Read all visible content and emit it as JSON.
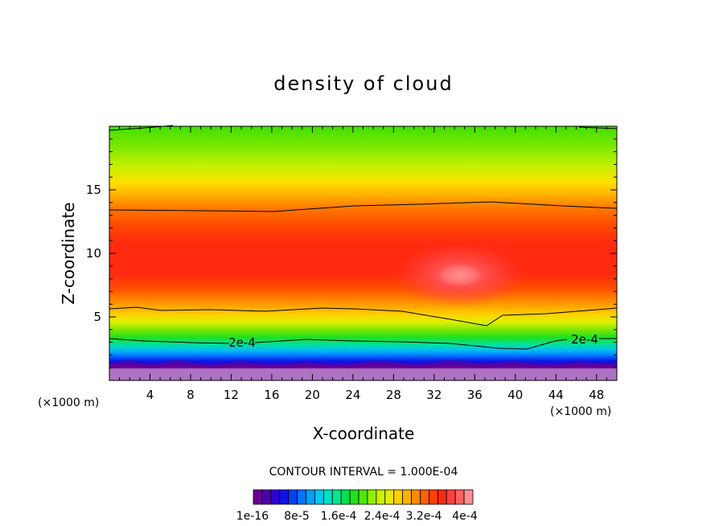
{
  "chart_data": {
    "type": "contour",
    "title": "density of cloud",
    "xlabel": "X-coordinate",
    "ylabel": "Z-coordinate",
    "x_unit": "(×1000 m)",
    "z_unit": "(×1000 m)",
    "xlim": [
      0,
      50
    ],
    "ylim": [
      0,
      20
    ],
    "x_ticks": [
      4,
      8,
      12,
      16,
      20,
      24,
      28,
      32,
      36,
      40,
      44,
      48
    ],
    "y_ticks": [
      5,
      10,
      15
    ],
    "contour_interval_label": "CONTOUR INTERVAL = 1.000E-04",
    "contour_line_label": "2e-4",
    "colorbar_labels": [
      "1e-16",
      "8e-5",
      "1.6e-4",
      "2.4e-4",
      "3.2e-4",
      "4e-4"
    ],
    "colorbar_colors": [
      "#6a0090",
      "#5000b0",
      "#3000d0",
      "#1010e8",
      "#0040ff",
      "#0070ff",
      "#00a0ff",
      "#00c8f0",
      "#00e0c8",
      "#00e890",
      "#00e050",
      "#20e020",
      "#50e800",
      "#90f000",
      "#c8f000",
      "#e8e800",
      "#ffd000",
      "#ffb000",
      "#ff8c00",
      "#ff6000",
      "#ff4000",
      "#ff2810",
      "#ff4040",
      "#ff6060",
      "#ff9090"
    ]
  }
}
